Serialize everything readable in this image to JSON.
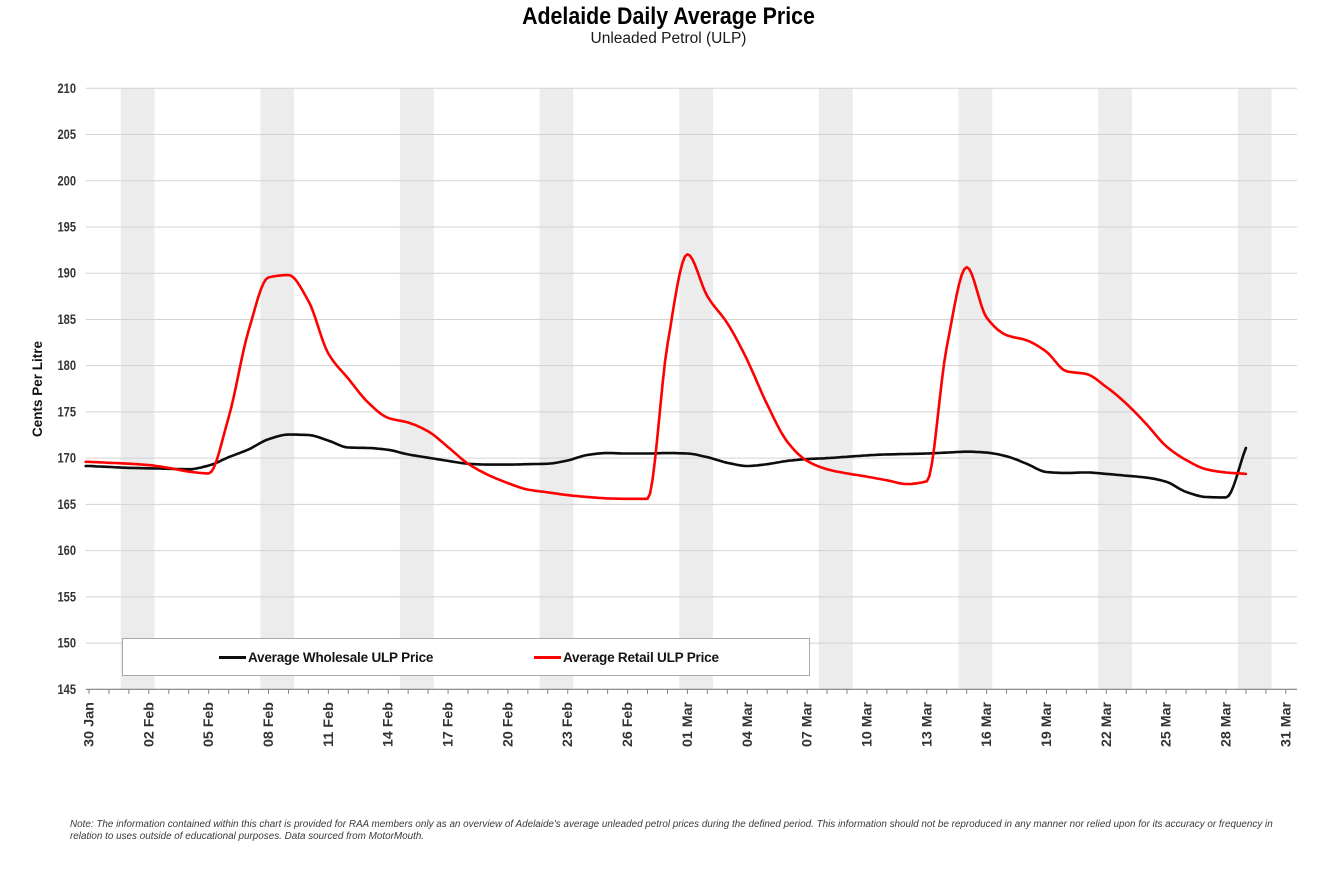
{
  "title": "Adelaide Daily Average Price",
  "subtitle": "Unleaded Petrol (ULP)",
  "y_axis_title": "Cents Per Litre",
  "legend": {
    "wholesale_label": "Average Wholesale ULP Price",
    "retail_label": "Average Retail ULP Price"
  },
  "note": {
    "line1": "Note: The information contained within this chart is provided for RAA members only as an overview of Adelaide's average unleaded petrol prices during the defined period. This information should not be reproduced in any manner nor relied upon for its accuracy or frequency in",
    "line2": "relation to uses outside of educational purposes. Data sourced from MotorMouth."
  },
  "colors": {
    "wholesale": "#0d0d0d",
    "retail": "#fe0000",
    "band": "#ececec",
    "grid": "#d3d3d3",
    "axis": "#7f7f7f",
    "tick_label": "#333333"
  },
  "chart_data": {
    "type": "line",
    "title": "Adelaide Daily Average Price",
    "subtitle": "Unleaded Petrol (ULP)",
    "ylabel": "Cents Per Litre",
    "ylim": [
      145,
      210
    ],
    "y_ticks": [
      145,
      150,
      155,
      160,
      165,
      170,
      175,
      180,
      185,
      190,
      195,
      200,
      205,
      210
    ],
    "x_start_date": "30 Jan",
    "x_tick_interval_days": 3,
    "x_tick_labels": [
      "30 Jan",
      "02 Feb",
      "05 Feb",
      "08 Feb",
      "11 Feb",
      "14 Feb",
      "17 Feb",
      "20 Feb",
      "23 Feb",
      "26 Feb",
      "01 Mar",
      "04 Mar",
      "07 Mar",
      "10 Mar",
      "13 Mar",
      "16 Mar",
      "19 Mar",
      "22 Mar",
      "25 Mar",
      "28 Mar",
      "31 Mar"
    ],
    "shaded_bands": {
      "first_start_day": 1.589,
      "width_days": 1.695,
      "period_days": 7.0,
      "count": 9
    },
    "series": [
      {
        "name": "Average Wholesale ULP Price",
        "color_key": "wholesale",
        "values": [
          169.15,
          169.05,
          168.95,
          168.9,
          168.85,
          168.8,
          169.2,
          170.1,
          170.95,
          172.05,
          172.55,
          172.5,
          171.9,
          171.15,
          171.1,
          170.9,
          170.4,
          170.05,
          169.7,
          169.4,
          169.3,
          169.3,
          169.35,
          169.4,
          169.75,
          170.35,
          170.55,
          170.5,
          170.5,
          170.55,
          170.5,
          170.1,
          169.5,
          169.15,
          169.35,
          169.7,
          169.9,
          170.0,
          170.15,
          170.3,
          170.4,
          170.45,
          170.5,
          170.6,
          170.7,
          170.6,
          170.2,
          169.4,
          168.5,
          168.4,
          168.45,
          168.3,
          168.1,
          167.9,
          167.45,
          166.35,
          165.8,
          165.75,
          171.1
        ]
      },
      {
        "name": "Average Retail ULP Price",
        "color_key": "retail",
        "values": [
          169.6,
          169.5,
          169.4,
          169.25,
          168.95,
          168.55,
          168.35,
          174.4,
          183.8,
          189.55,
          189.8,
          187.0,
          181.3,
          178.6,
          176.0,
          174.35,
          173.85,
          172.9,
          171.2,
          169.4,
          168.2,
          167.3,
          166.6,
          166.3,
          166.0,
          165.8,
          165.65,
          165.6,
          165.6,
          182.3,
          192.05,
          187.5,
          184.6,
          180.6,
          175.8,
          171.8,
          169.7,
          168.8,
          168.35,
          168.0,
          167.6,
          167.2,
          167.5,
          182.0,
          190.65,
          185.2,
          183.3,
          182.75,
          181.5,
          179.4,
          179.1,
          177.7,
          175.9,
          173.7,
          171.3,
          169.8,
          168.8,
          168.45,
          168.3
        ]
      }
    ]
  }
}
